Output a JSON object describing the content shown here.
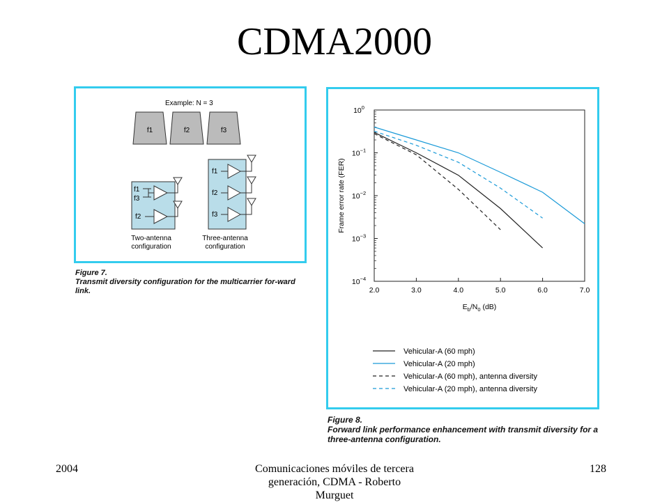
{
  "slide": {
    "title": "CDMA2000"
  },
  "figure7": {
    "example_label": "Example: N = 3",
    "carriers": [
      "f1",
      "f2",
      "f3"
    ],
    "two_antenna": {
      "branch1": [
        "f1",
        "f3"
      ],
      "branch2": "f2",
      "label": [
        "Two-antenna",
        "configuration"
      ]
    },
    "three_antenna": {
      "branches": [
        "f1",
        "f2",
        "f3"
      ],
      "label": [
        "Three-antenna",
        "configuration"
      ]
    },
    "caption_head": "Figure 7.",
    "caption_text": "Transmit diversity configuration for the multicarrier for-ward link."
  },
  "figure8": {
    "caption_head": "Figure 8.",
    "caption_text": "Forward link performance enhancement with transmit diversity for a three-antenna configuration."
  },
  "chart_data": {
    "type": "line",
    "xlabel": "E_b/N_0 (dB)",
    "ylabel": "Frame error rate (FER)",
    "xlim": [
      2.0,
      7.0
    ],
    "ylim": [
      0.0001,
      1
    ],
    "yscale": "log",
    "x_ticks": [
      2.0,
      3.0,
      4.0,
      5.0,
      6.0,
      7.0
    ],
    "x_tick_labels": [
      "2.0",
      "3.0",
      "4.0",
      "5.0",
      "6.0",
      "7.0"
    ],
    "y_ticks": [
      1,
      0.1,
      0.01,
      0.001,
      0.0001
    ],
    "y_tick_labels": [
      {
        "base": "10",
        "exp": "0"
      },
      {
        "base": "10",
        "exp": "−1"
      },
      {
        "base": "10",
        "exp": "−2"
      },
      {
        "base": "10",
        "exp": "−3"
      },
      {
        "base": "10",
        "exp": "−4"
      }
    ],
    "legend_position": "bottom",
    "series": [
      {
        "name": "Vehicular-A (60 mph)",
        "color": "#222222",
        "dash": false,
        "x": [
          2.0,
          3.0,
          4.0,
          5.0,
          6.0
        ],
        "y": [
          0.3,
          0.1,
          0.03,
          0.005,
          0.0006
        ]
      },
      {
        "name": "Vehicular-A (20 mph)",
        "color": "#1a9ad8",
        "dash": false,
        "x": [
          2.0,
          3.0,
          4.0,
          5.0,
          6.0,
          7.0
        ],
        "y": [
          0.4,
          0.2,
          0.1,
          0.035,
          0.012,
          0.0022
        ]
      },
      {
        "name": "Vehicular-A (60 mph), antenna diversity",
        "color": "#222222",
        "dash": true,
        "x": [
          2.0,
          3.0,
          4.0,
          5.0
        ],
        "y": [
          0.28,
          0.09,
          0.014,
          0.0016
        ]
      },
      {
        "name": "Vehicular-A (20 mph), antenna diversity",
        "color": "#1a9ad8",
        "dash": true,
        "x": [
          2.0,
          3.0,
          4.0,
          5.0,
          6.0
        ],
        "y": [
          0.32,
          0.15,
          0.06,
          0.015,
          0.003
        ]
      }
    ]
  },
  "footer": {
    "year": "2004",
    "center_line1": "Comunicaciones móviles de tercera",
    "center_line2": "generación, CDMA - Roberto",
    "center_line3": "Murguet",
    "page": "128"
  }
}
